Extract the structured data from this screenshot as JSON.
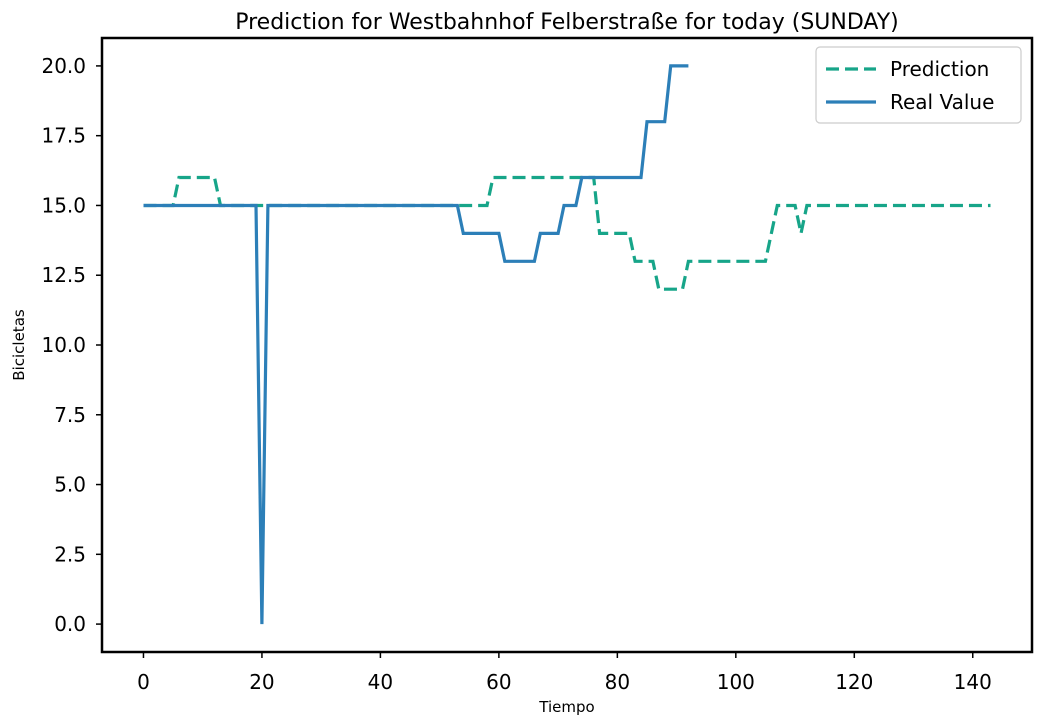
{
  "chart_data": {
    "type": "line",
    "title": "Prediction for Westbahnhof Felberstraße for today (SUNDAY)",
    "xlabel": "Tiempo",
    "ylabel": "Bicicletas",
    "xlim": [
      -7,
      150
    ],
    "ylim": [
      -1,
      21
    ],
    "xticks": [
      0,
      20,
      40,
      60,
      80,
      100,
      120,
      140
    ],
    "xtick_labels": [
      "0",
      "20",
      "40",
      "60",
      "80",
      "100",
      "120",
      "140"
    ],
    "yticks": [
      0,
      2.5,
      5,
      7.5,
      10,
      12.5,
      15,
      17.5,
      20
    ],
    "ytick_labels": [
      "0.0",
      "2.5",
      "5.0",
      "7.5",
      "10.0",
      "12.5",
      "15.0",
      "17.5",
      "20.0"
    ],
    "grid": false,
    "legend_position": "top-right",
    "series": [
      {
        "name": "Prediction",
        "color": "#17a589",
        "style": "dashed",
        "x": [
          0,
          5,
          6,
          12,
          13,
          58,
          59,
          74,
          75,
          76,
          77,
          82,
          83,
          86,
          87,
          91,
          92,
          105,
          107,
          110,
          111,
          112,
          143
        ],
        "y": [
          15,
          15,
          16,
          16,
          15,
          15,
          16,
          16,
          16,
          16,
          14,
          14,
          13,
          13,
          12,
          12,
          13,
          13,
          15,
          15,
          14,
          15,
          15
        ]
      },
      {
        "name": "Real Value",
        "color": "#2c7fb8",
        "style": "solid",
        "x": [
          0,
          19,
          20,
          21,
          53,
          54,
          60,
          61,
          66,
          67,
          70,
          71,
          73,
          74,
          84,
          85,
          88,
          89,
          92
        ],
        "y": [
          15,
          15,
          0,
          15,
          15,
          14,
          14,
          13,
          13,
          14,
          14,
          15,
          15,
          16,
          16,
          18,
          18,
          20,
          20
        ]
      }
    ]
  }
}
